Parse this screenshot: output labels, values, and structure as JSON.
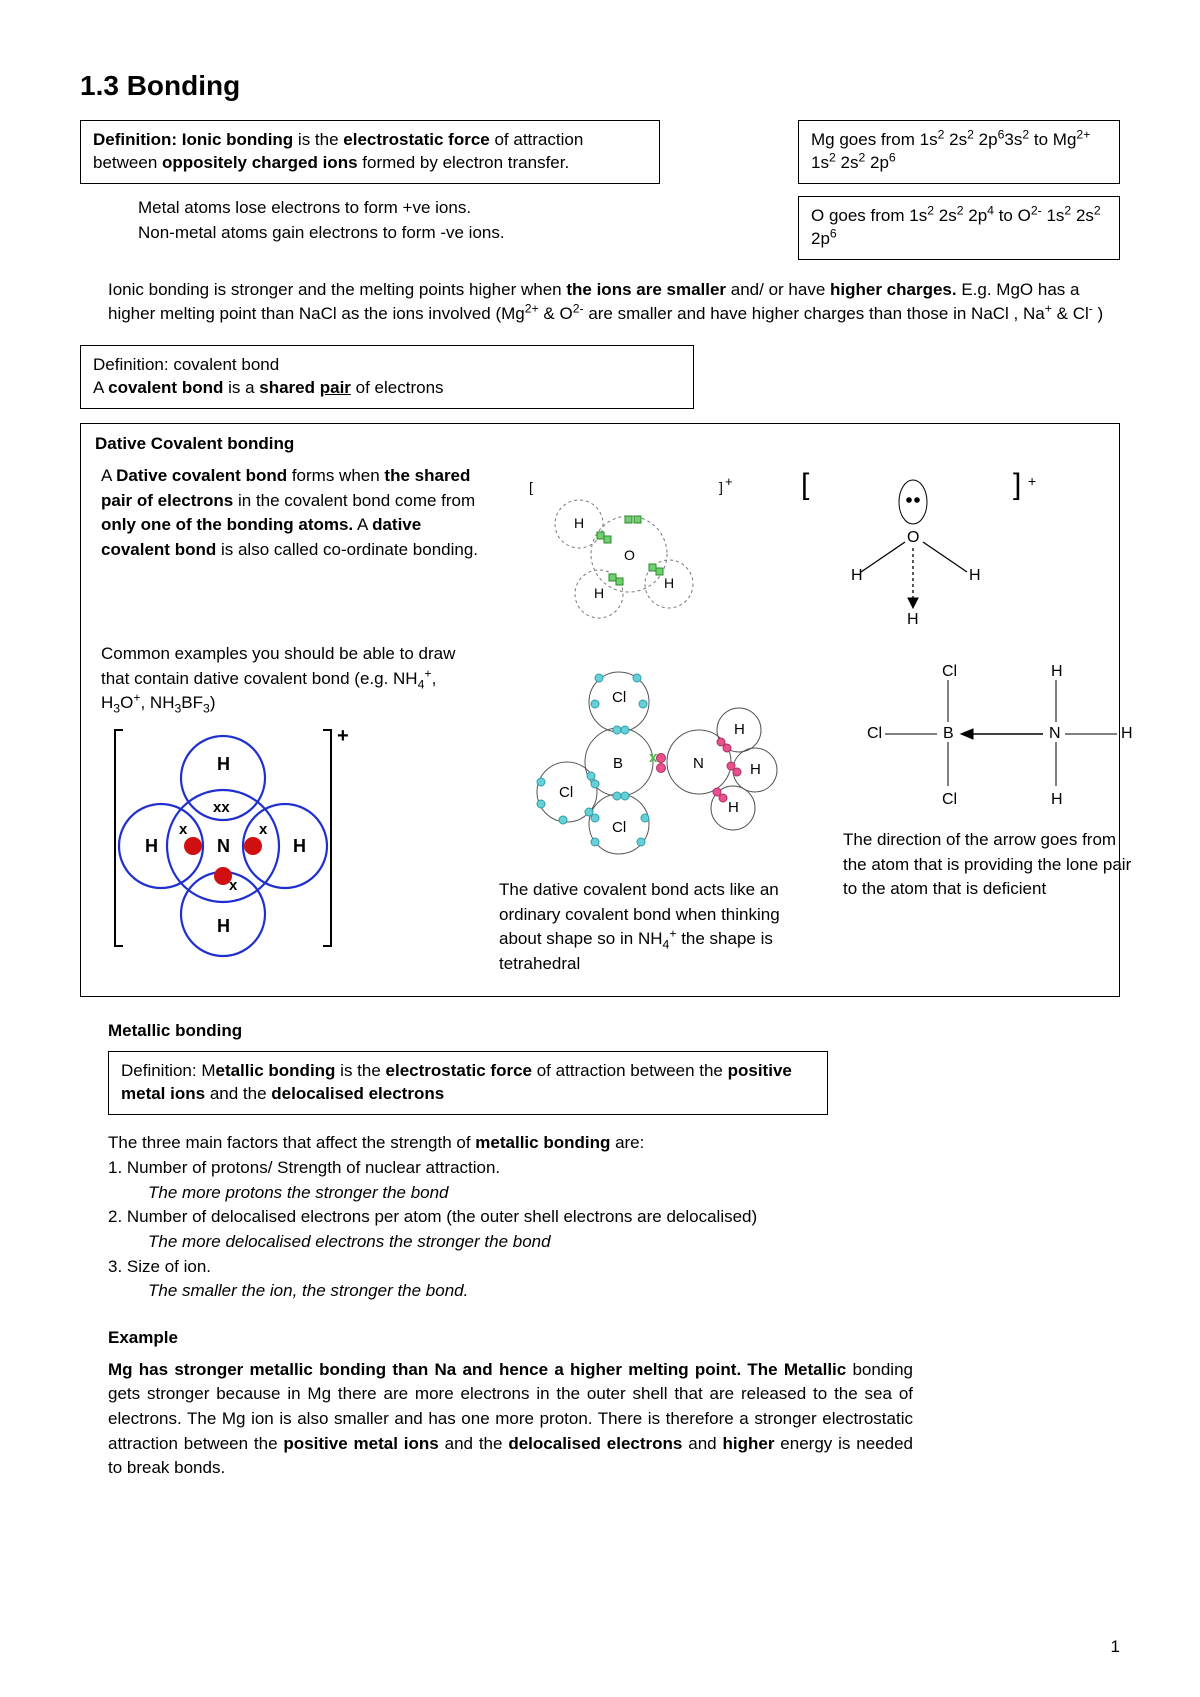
{
  "title": "1.3 Bonding",
  "definition_ionic_html": "<b>Definition: Ionic bonding</b> is the <b>electrostatic force</b> of attraction between <b>oppositely charged ions</b> formed by electron transfer.",
  "mg_config_html": "Mg goes from 1s<span class='sup'>2</span> 2s<span class='sup'>2</span> 2p<span class='sup'>6</span>3s<span class='sup'>2</span> to Mg<span class='sup'>2+</span> 1s<span class='sup'>2</span> 2s<span class='sup'>2</span> 2p<span class='sup'>6</span>",
  "o_config_html": "O goes from 1s<span class='sup'>2</span> 2s<span class='sup'>2</span> 2p<span class='sup'>4</span> to O<span class='sup'>2-</span> 1s<span class='sup'>2</span> 2s<span class='sup'>2</span> 2p<span class='sup'>6</span>",
  "metal_nonmetal_html": "Metal atoms lose electrons to form +ve ions.<br>Non-metal atoms gain electrons to form  -ve ions.",
  "ionic_strength_html": "Ionic bonding is stronger and the melting points higher when <b>the ions are smaller</b> and/ or have <b>higher charges.</b> E.g. MgO has a higher melting point than NaCl as the ions involved (Mg<span class='sup'>2+</span> &amp; O<span class='sup'>2-</span> are smaller and have higher charges than those in NaCl , Na<span class='sup'>+</span> &amp; Cl<span class='sup'>-</span> )",
  "definition_covalent_html": "Definition: covalent bond<br>A <b>covalent bond</b> is a <b>shared <span class='u'>pair</span></b> of electrons",
  "dative_title": "Dative Covalent bonding",
  "dative_para1_html": "A <b>Dative covalent bond</b> forms when <b>the shared pair of electrons</b> in the covalent bond come from <b>only one of the bonding atoms.</b> A <b>dative covalent bond</b> is also called co-ordinate bonding.",
  "dative_examples_html": "Common examples you should be able to draw that contain dative covalent bond (e.g. NH<span class='sub'>4</span><span class='sup'>+</span>, H<span class='sub'>3</span>O<span class='sup'>+</span>, NH<span class='sub'>3</span>BF<span class='sub'>3</span>)",
  "dative_shape_html": "The dative covalent bond acts like an ordinary covalent bond when thinking about shape so in NH<span class='sub'>4</span><span class='sup'>+</span> the shape is tetrahedral",
  "dative_arrow_html": "The direction of the arrow goes from the atom that is providing the lone pair to the atom that is deficient",
  "metallic_title": "Metallic bonding",
  "definition_metallic_html": "Definition: M<b>etallic bonding</b> is the <b>electrostatic force</b> of attraction between the <b>positive metal  ions</b> and the <b>delocalised electrons</b>",
  "factors_intro_html": "The three main factors that affect the strength of  <b>metallic bonding</b> are:",
  "factor1": "1. Number of protons/ Strength of nuclear attraction.",
  "factor1_i": "The more protons the stronger the bond",
  "factor2": "2. Number of delocalised electrons per atom (the outer shell electrons are delocalised)",
  "factor2_i": "The more delocalised electrons the stronger the bond",
  "factor3": "3. Size of ion.",
  "factor3_i": "The smaller the ion, the stronger the bond.",
  "example_title": "Example",
  "example_body_html": "<b>Mg has stronger metallic bonding than Na and hence a higher melting point. The Metallic</b> bonding gets stronger because in Mg there are more electrons in the outer shell that are released to the sea of electrons. The Mg ion is also smaller and has one more proton. There is therefore a stronger electrostatic attraction between the <b>positive metal ions</b> and the <b>delocalised electrons</b> and <b>higher</b> energy is needed to break bonds.",
  "page_number": "1",
  "colors": {
    "blue": "#2030d0",
    "red": "#d01010",
    "cyan": "#66d0d8",
    "pink": "#e85090",
    "green": "#50c050",
    "greenfill": "#70d070"
  },
  "nh4_diagram": {
    "labels": {
      "N": "N",
      "H1": "H",
      "H2": "H",
      "H3": "H",
      "H4": "H",
      "x": "x",
      "plus": "+"
    }
  },
  "h3o_diagram": {
    "labels": {
      "O": "O",
      "H": "H",
      "plus": "+"
    }
  },
  "h3o_line": {
    "labels": {
      "O": "O",
      "H": "H",
      "plus": "+"
    }
  },
  "bcl3nh3_diagram": {
    "labels": {
      "B": "B",
      "N": "N",
      "Cl": "Cl",
      "H": "H"
    }
  },
  "bcl3nh3_line": {
    "labels": {
      "B": "B",
      "N": "N",
      "Cl": "Cl",
      "H": "H"
    }
  }
}
